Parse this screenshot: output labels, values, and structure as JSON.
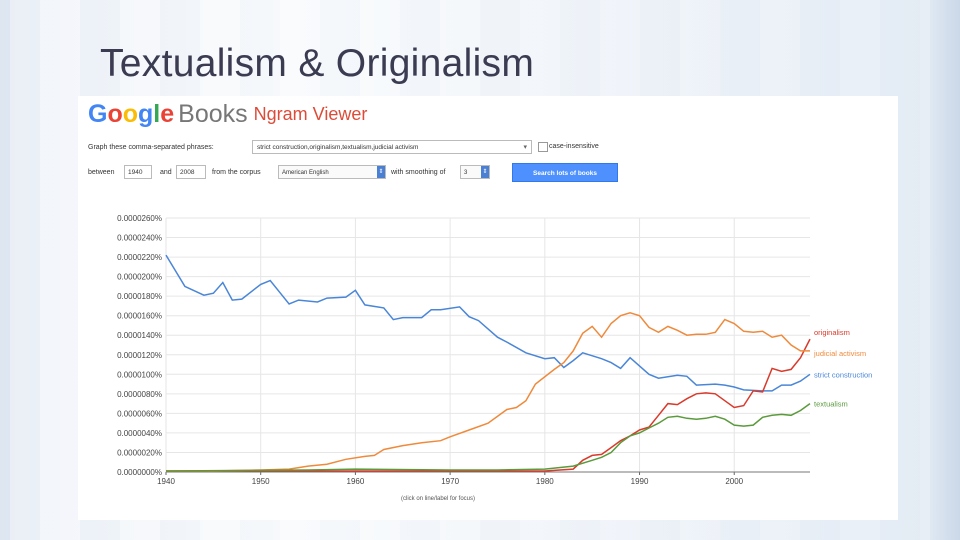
{
  "slide": {
    "title": "Textualism & Originalism"
  },
  "header": {
    "logo_letters": [
      "G",
      "o",
      "o",
      "g",
      "l",
      "e"
    ],
    "logo_books": "Books",
    "app_name": "Ngram Viewer"
  },
  "form": {
    "phrases_label": "Graph these comma-separated phrases:",
    "phrases_value": "strict construction,originalism,textualism,judicial activism",
    "case_insensitive_label": "case-insensitive",
    "between_label": "between",
    "start_year": "1940",
    "and_label": "and",
    "end_year": "2008",
    "corpus_label": "from the corpus",
    "corpus_value": "American English",
    "smoothing_label": "with smoothing of",
    "smoothing_value": "3",
    "search_button": "Search lots of books"
  },
  "colors": {
    "strict_construction": "#4a86d8",
    "originalism": "#d93a2b",
    "textualism": "#5a9a3c",
    "judicial_activism": "#ef8a3c",
    "search_button": "#4d90fe"
  },
  "chart_data": {
    "type": "line",
    "title": "",
    "xlabel": "",
    "ylabel": "",
    "footnote": "(click on line/label for focus)",
    "xlim": [
      1940,
      2008
    ],
    "ylim": [
      0,
      2.6e-05
    ],
    "yticks": [
      "0.0000260%",
      "0.0000240%",
      "0.0000220%",
      "0.0000200%",
      "0.0000180%",
      "0.0000160%",
      "0.0000140%",
      "0.0000120%",
      "0.0000100%",
      "0.0000080%",
      "0.0000060%",
      "0.0000040%",
      "0.0000020%",
      "0.0000000%"
    ],
    "ytick_values": [
      2.6e-05,
      2.4e-05,
      2.2e-05,
      2e-05,
      1.8e-05,
      1.6e-05,
      1.4e-05,
      1.2e-05,
      1e-05,
      8e-06,
      6e-06,
      4e-06,
      2e-06,
      0
    ],
    "xticks": [
      "1940",
      "1950",
      "1960",
      "1970",
      "1980",
      "1990",
      "2000"
    ],
    "xtick_values": [
      1940,
      1950,
      1960,
      1970,
      1980,
      1990,
      2000
    ],
    "grid": true,
    "legend": "right (labels at line ends)",
    "series": [
      {
        "name": "strict construction",
        "color_key": "strict_construction",
        "points": [
          [
            1940,
            2.22e-05
          ],
          [
            1942,
            1.9e-05
          ],
          [
            1944,
            1.81e-05
          ],
          [
            1945,
            1.83e-05
          ],
          [
            1946,
            1.94e-05
          ],
          [
            1947,
            1.76e-05
          ],
          [
            1948,
            1.77e-05
          ],
          [
            1950,
            1.92e-05
          ],
          [
            1951,
            1.96e-05
          ],
          [
            1952,
            1.84e-05
          ],
          [
            1953,
            1.72e-05
          ],
          [
            1954,
            1.76e-05
          ],
          [
            1956,
            1.74e-05
          ],
          [
            1957,
            1.78e-05
          ],
          [
            1959,
            1.79e-05
          ],
          [
            1960,
            1.86e-05
          ],
          [
            1961,
            1.71e-05
          ],
          [
            1963,
            1.68e-05
          ],
          [
            1964,
            1.56e-05
          ],
          [
            1965,
            1.58e-05
          ],
          [
            1967,
            1.58e-05
          ],
          [
            1968,
            1.66e-05
          ],
          [
            1969,
            1.66e-05
          ],
          [
            1971,
            1.69e-05
          ],
          [
            1972,
            1.59e-05
          ],
          [
            1973,
            1.55e-05
          ],
          [
            1975,
            1.38e-05
          ],
          [
            1976,
            1.33e-05
          ],
          [
            1978,
            1.22e-05
          ],
          [
            1980,
            1.16e-05
          ],
          [
            1981,
            1.17e-05
          ],
          [
            1982,
            1.07e-05
          ],
          [
            1983,
            1.14e-05
          ],
          [
            1984,
            1.22e-05
          ],
          [
            1986,
            1.16e-05
          ],
          [
            1987,
            1.12e-05
          ],
          [
            1988,
            1.06e-05
          ],
          [
            1989,
            1.17e-05
          ],
          [
            1991,
            1e-05
          ],
          [
            1992,
            9.6e-06
          ],
          [
            1994,
            9.9e-06
          ],
          [
            1995,
            9.8e-06
          ],
          [
            1996,
            8.9e-06
          ],
          [
            1998,
            9e-06
          ],
          [
            1999,
            8.9e-06
          ],
          [
            2000,
            8.7e-06
          ],
          [
            2001,
            8.4e-06
          ],
          [
            2003,
            8.3e-06
          ],
          [
            2004,
            8.3e-06
          ],
          [
            2005,
            8.9e-06
          ],
          [
            2006,
            8.9e-06
          ],
          [
            2007,
            9.3e-06
          ],
          [
            2008,
            1e-05
          ]
        ]
      },
      {
        "name": "originalism",
        "color_key": "originalism",
        "points": [
          [
            1940,
            1e-07
          ],
          [
            1970,
            1e-07
          ],
          [
            1980,
            1e-07
          ],
          [
            1983,
            3e-07
          ],
          [
            1984,
            1.2e-06
          ],
          [
            1985,
            1.7e-06
          ],
          [
            1986,
            1.8e-06
          ],
          [
            1987,
            2.5e-06
          ],
          [
            1988,
            3.2e-06
          ],
          [
            1989,
            3.7e-06
          ],
          [
            1990,
            4.3e-06
          ],
          [
            1991,
            4.6e-06
          ],
          [
            1992,
            5.8e-06
          ],
          [
            1993,
            7e-06
          ],
          [
            1994,
            6.9e-06
          ],
          [
            1995,
            7.5e-06
          ],
          [
            1996,
            8e-06
          ],
          [
            1997,
            8.1e-06
          ],
          [
            1998,
            8e-06
          ],
          [
            1999,
            7.3e-06
          ],
          [
            2000,
            6.6e-06
          ],
          [
            2001,
            6.8e-06
          ],
          [
            2002,
            8.3e-06
          ],
          [
            2003,
            8.2e-06
          ],
          [
            2004,
            1.06e-05
          ],
          [
            2005,
            1.03e-05
          ],
          [
            2006,
            1.05e-05
          ],
          [
            2007,
            1.17e-05
          ],
          [
            2008,
            1.36e-05
          ]
        ]
      },
      {
        "name": "judicial activism",
        "color_key": "judicial_activism",
        "points": [
          [
            1940,
            1e-07
          ],
          [
            1945,
            1e-07
          ],
          [
            1950,
            2e-07
          ],
          [
            1953,
            3e-07
          ],
          [
            1955,
            6e-07
          ],
          [
            1957,
            8e-07
          ],
          [
            1959,
            1.3e-06
          ],
          [
            1961,
            1.6e-06
          ],
          [
            1962,
            1.7e-06
          ],
          [
            1963,
            2.3e-06
          ],
          [
            1965,
            2.7e-06
          ],
          [
            1967,
            3e-06
          ],
          [
            1969,
            3.2e-06
          ],
          [
            1970,
            3.6e-06
          ],
          [
            1972,
            4.3e-06
          ],
          [
            1974,
            5e-06
          ],
          [
            1976,
            6.4e-06
          ],
          [
            1977,
            6.6e-06
          ],
          [
            1978,
            7.3e-06
          ],
          [
            1979,
            9e-06
          ],
          [
            1981,
            1.05e-05
          ],
          [
            1982,
            1.12e-05
          ],
          [
            1983,
            1.24e-05
          ],
          [
            1984,
            1.42e-05
          ],
          [
            1985,
            1.49e-05
          ],
          [
            1986,
            1.38e-05
          ],
          [
            1987,
            1.52e-05
          ],
          [
            1988,
            1.6e-05
          ],
          [
            1989,
            1.63e-05
          ],
          [
            1990,
            1.6e-05
          ],
          [
            1991,
            1.48e-05
          ],
          [
            1992,
            1.43e-05
          ],
          [
            1993,
            1.49e-05
          ],
          [
            1994,
            1.45e-05
          ],
          [
            1995,
            1.4e-05
          ],
          [
            1996,
            1.41e-05
          ],
          [
            1997,
            1.41e-05
          ],
          [
            1998,
            1.43e-05
          ],
          [
            1999,
            1.56e-05
          ],
          [
            2000,
            1.52e-05
          ],
          [
            2001,
            1.44e-05
          ],
          [
            2002,
            1.43e-05
          ],
          [
            2003,
            1.44e-05
          ],
          [
            2004,
            1.38e-05
          ],
          [
            2005,
            1.4e-05
          ],
          [
            2006,
            1.3e-05
          ],
          [
            2007,
            1.24e-05
          ],
          [
            2008,
            1.24e-05
          ]
        ]
      },
      {
        "name": "textualism",
        "color_key": "textualism",
        "points": [
          [
            1940,
            1e-07
          ],
          [
            1955,
            2e-07
          ],
          [
            1960,
            3e-07
          ],
          [
            1970,
            2e-07
          ],
          [
            1975,
            2e-07
          ],
          [
            1980,
            3e-07
          ],
          [
            1983,
            6e-07
          ],
          [
            1985,
            1.2e-06
          ],
          [
            1986,
            1.5e-06
          ],
          [
            1987,
            2e-06
          ],
          [
            1988,
            3e-06
          ],
          [
            1989,
            3.7e-06
          ],
          [
            1990,
            4e-06
          ],
          [
            1991,
            4.5e-06
          ],
          [
            1992,
            5e-06
          ],
          [
            1993,
            5.6e-06
          ],
          [
            1994,
            5.7e-06
          ],
          [
            1995,
            5.5e-06
          ],
          [
            1996,
            5.4e-06
          ],
          [
            1997,
            5.5e-06
          ],
          [
            1998,
            5.7e-06
          ],
          [
            1999,
            5.4e-06
          ],
          [
            2000,
            4.8e-06
          ],
          [
            2001,
            4.7e-06
          ],
          [
            2002,
            4.8e-06
          ],
          [
            2003,
            5.6e-06
          ],
          [
            2004,
            5.8e-06
          ],
          [
            2005,
            5.9e-06
          ],
          [
            2006,
            5.8e-06
          ],
          [
            2007,
            6.3e-06
          ],
          [
            2008,
            7e-06
          ]
        ]
      }
    ]
  }
}
